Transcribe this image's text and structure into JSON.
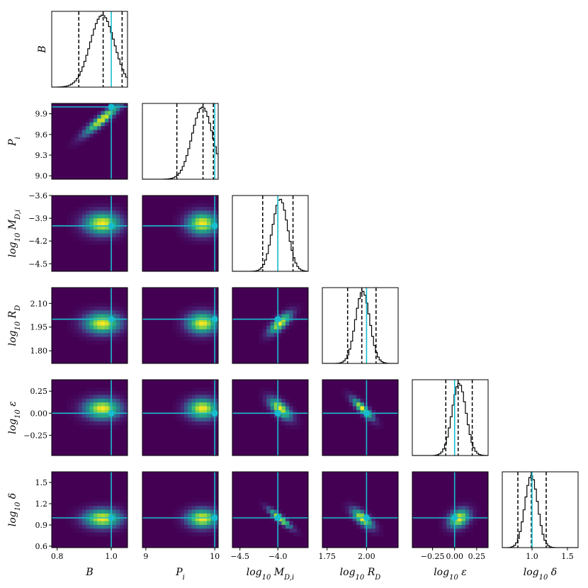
{
  "chart_data": {
    "type": "corner",
    "parameters": [
      {
        "key": "B",
        "label": "B",
        "truth": 1.0,
        "range": [
          0.78,
          1.06
        ],
        "ticks": [
          0.8,
          1.0
        ],
        "tick_labels": [
          "0.8",
          "1.0"
        ],
        "mean": 0.967,
        "sd": 0.045,
        "quantiles": [
          0.88,
          0.97,
          1.04
        ]
      },
      {
        "key": "Pi",
        "label": "P_i",
        "truth": 10.0,
        "range": [
          8.95,
          10.05
        ],
        "ticks": [
          9.0,
          9.3,
          9.6,
          9.9
        ],
        "tick_labels": [
          "9.0",
          "9.3",
          "9.6",
          "9.9"
        ],
        "xticks": [
          9,
          10
        ],
        "xtick_labels": [
          "9",
          "10"
        ],
        "mean": 9.82,
        "sd": 0.15,
        "quantiles": [
          9.45,
          9.83,
          9.98
        ]
      },
      {
        "key": "logMDi",
        "label": "log10 M_D,i",
        "truth": -4.0,
        "range": [
          -4.6,
          -3.6
        ],
        "ticks": [
          -4.5,
          -4.2,
          -3.9,
          -3.6
        ],
        "tick_labels": [
          "−4.5",
          "−4.2",
          "−3.9",
          "−3.6"
        ],
        "xticks": [
          -4.5,
          -4.0
        ],
        "xtick_labels": [
          "−4.5",
          "−4.0"
        ],
        "mean": -3.97,
        "sd": 0.1,
        "quantiles": [
          -4.2,
          -4.0,
          -3.8
        ]
      },
      {
        "key": "logRD",
        "label": "log10 R_D",
        "truth": 2.0,
        "range": [
          1.72,
          2.2
        ],
        "ticks": [
          1.8,
          1.95,
          2.1
        ],
        "tick_labels": [
          "1.80",
          "1.95",
          "2.10"
        ],
        "xticks": [
          1.75,
          2.0
        ],
        "xtick_labels": [
          "1.75",
          "2.00"
        ],
        "mean": 1.975,
        "sd": 0.045,
        "quantiles": [
          1.88,
          1.97,
          2.06
        ]
      },
      {
        "key": "logeps",
        "label": "log10 ε",
        "truth": 0.0,
        "range": [
          -0.48,
          0.38
        ],
        "ticks": [
          -0.25,
          0.0,
          0.25
        ],
        "tick_labels": [
          "−0.25",
          "0.00",
          "0.25"
        ],
        "xticks": [
          -0.25,
          0.0,
          0.25
        ],
        "xtick_labels": [
          "−0.25",
          "0.00",
          "0.25"
        ],
        "mean": 0.05,
        "sd": 0.08,
        "quantiles": [
          -0.1,
          0.04,
          0.2
        ]
      },
      {
        "key": "logdelta",
        "label": "log10 δ",
        "truth": 1.0,
        "range": [
          0.58,
          1.65
        ],
        "ticks": [
          0.6,
          0.9,
          1.2,
          1.5
        ],
        "tick_labels": [
          "0.6",
          "0.9",
          "1.2",
          "1.5"
        ],
        "xticks": [
          1.0,
          1.5
        ],
        "xtick_labels": [
          "1.0",
          "1.5"
        ],
        "mean": 0.99,
        "sd": 0.09,
        "quantiles": [
          0.8,
          0.99,
          1.2
        ]
      }
    ],
    "correlations": [
      [
        1,
        0.92,
        0.0,
        0.0,
        0.0,
        0.0
      ],
      [
        0.92,
        1,
        0.0,
        0.0,
        0.0,
        0.0
      ],
      [
        0.0,
        0.0,
        1,
        0.75,
        -0.65,
        -0.9
      ],
      [
        0.0,
        0.0,
        0.75,
        1,
        -0.85,
        -0.7
      ],
      [
        0.0,
        0.0,
        -0.65,
        -0.85,
        1,
        0.3
      ],
      [
        0.0,
        0.0,
        -0.9,
        -0.7,
        0.3,
        1
      ]
    ],
    "truth_color": "#17becf",
    "hist_color": "#000000",
    "quantile_color": "#000000",
    "colormap": "viridis"
  }
}
